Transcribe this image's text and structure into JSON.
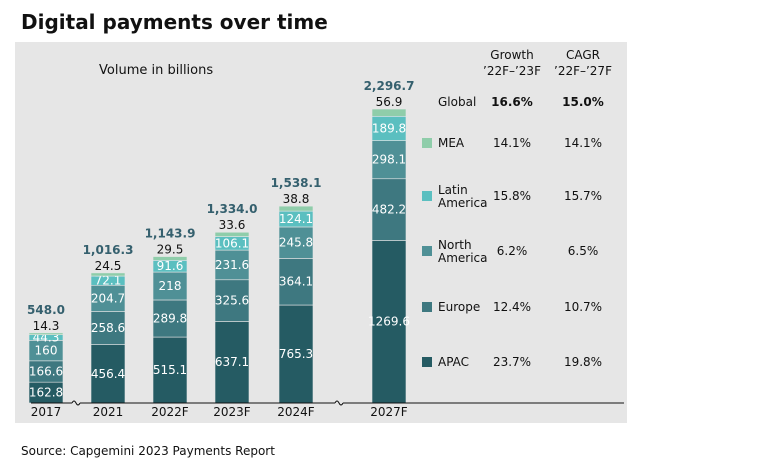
{
  "chart_data": {
    "type": "bar",
    "title": "Digital payments over time",
    "subtitle": "Volume in billions",
    "source": "Source: Capgemini 2023 Payments Report",
    "categories": [
      "2017",
      "2021",
      "2022F",
      "2023F",
      "2024F",
      "2027F"
    ],
    "series": [
      {
        "name": "APAC",
        "values": [
          162.8,
          456.4,
          515.1,
          637.1,
          765.3,
          1269.6
        ],
        "labels": [
          "162.8",
          "456.4",
          "515.1",
          "637.1",
          "765.3",
          "1269.6"
        ]
      },
      {
        "name": "Europe",
        "values": [
          166.6,
          258.6,
          289.8,
          325.6,
          364.1,
          482.2
        ],
        "labels": [
          "166.6",
          "258.6",
          "289.8",
          "325.6",
          "364.1",
          "482.2"
        ]
      },
      {
        "name": "North America",
        "values": [
          160,
          204.7,
          218,
          231.6,
          245.8,
          298.1
        ],
        "labels": [
          "160",
          "204.7",
          "218",
          "231.6",
          "245.8",
          "298.1"
        ]
      },
      {
        "name": "Latin America",
        "values": [
          44.3,
          72.1,
          91.6,
          106.1,
          124.1,
          189.8
        ],
        "labels": [
          "44.3",
          "72.1",
          "91.6",
          "106.1",
          "124.1",
          "189.8"
        ]
      },
      {
        "name": "MEA",
        "values": [
          14.3,
          24.5,
          29.5,
          33.6,
          38.8,
          56.9
        ],
        "labels": [
          "14.3",
          "24.5",
          "29.5",
          "33.6",
          "38.8",
          "56.9"
        ]
      }
    ],
    "totals": [
      "548.0",
      "1,016.3",
      "1,143.9",
      "1,334.0",
      "1,538.1",
      "2,296.7"
    ],
    "legend_table": {
      "header_growth": [
        "Growth",
        "’22F–’23F"
      ],
      "header_cagr": [
        "CAGR",
        "’22F–’27F"
      ],
      "rows": [
        {
          "label": "Global",
          "growth": "16.6%",
          "cagr": "15.0%"
        },
        {
          "label": "MEA",
          "growth": "14.1%",
          "cagr": "14.1%"
        },
        {
          "label": "Latin America",
          "label_lines": [
            "Latin",
            "America"
          ],
          "growth": "15.8%",
          "cagr": "15.7%"
        },
        {
          "label": "North America",
          "label_lines": [
            "North",
            "America"
          ],
          "growth": "6.2%",
          "cagr": "6.5%"
        },
        {
          "label": "Europe",
          "growth": "12.4%",
          "cagr": "10.7%"
        },
        {
          "label": "APAC",
          "growth": "23.7%",
          "cagr": "19.8%"
        }
      ]
    },
    "colors": {
      "APAC": "#255b63",
      "Europe": "#3e7880",
      "North America": "#4f9096",
      "Latin America": "#5bbfc0",
      "MEA": "#8fcdaa",
      "total_text": "#35606e",
      "segment_text": "#ffffff",
      "panel": "#e6e6e6"
    }
  }
}
